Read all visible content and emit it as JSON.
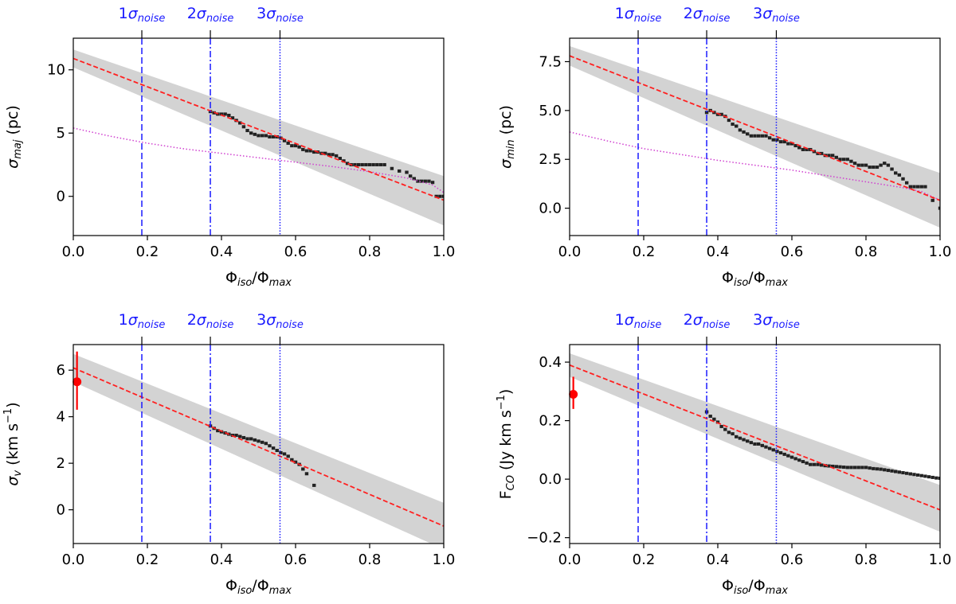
{
  "figure": {
    "noise_labels": [
      {
        "num": "1",
        "sym": "σ",
        "sub": "noise",
        "x": 0.185,
        "style": "dashed"
      },
      {
        "num": "2",
        "sym": "σ",
        "sub": "noise",
        "x": 0.37,
        "style": "dashdot"
      },
      {
        "num": "3",
        "sym": "σ",
        "sub": "noise",
        "x": 0.558,
        "style": "dotted"
      }
    ],
    "xlabel": {
      "phi1": "Φ",
      "sub1": "iso",
      "slash": "/",
      "phi2": "Φ",
      "sub2": "max"
    },
    "colors": {
      "fit": "#ff2020",
      "band": "#d3d3d3",
      "data": "#222222",
      "noise": "#1a1aff",
      "model": "#d040d0",
      "marker": "#ff0000"
    }
  },
  "chart_data": [
    {
      "id": "sigma_maj",
      "type": "scatter",
      "ylabel": {
        "main": "σ",
        "sub": "maj",
        "rest": " (pc)"
      },
      "xlim": [
        0,
        1
      ],
      "ylim": [
        -3.1,
        12.5
      ],
      "xticks": [
        "0.0",
        "0.2",
        "0.4",
        "0.6",
        "0.8",
        "1.0"
      ],
      "yticks": [
        {
          "v": 0,
          "label": "0"
        },
        {
          "v": 5,
          "label": "5"
        },
        {
          "v": 10,
          "label": "10"
        }
      ],
      "fit": {
        "x": [
          0,
          1
        ],
        "y": [
          10.9,
          -0.3
        ]
      },
      "band_upper": {
        "x": [
          0,
          1
        ],
        "y": [
          11.6,
          1.6
        ]
      },
      "band_lower": {
        "x": [
          0,
          1
        ],
        "y": [
          10.2,
          -2.3
        ]
      },
      "model_curve": {
        "x": [
          0,
          0.1,
          0.2,
          0.3,
          0.4,
          0.5,
          0.6,
          0.7,
          0.8,
          0.9,
          0.97,
          1.0
        ],
        "y": [
          5.4,
          4.75,
          4.2,
          3.75,
          3.4,
          3.05,
          2.7,
          2.35,
          1.95,
          1.45,
          0.9,
          0.3
        ]
      },
      "points_x": [
        0.37,
        0.38,
        0.39,
        0.4,
        0.41,
        0.42,
        0.43,
        0.44,
        0.45,
        0.46,
        0.47,
        0.48,
        0.49,
        0.5,
        0.51,
        0.52,
        0.53,
        0.54,
        0.55,
        0.56,
        0.57,
        0.58,
        0.59,
        0.6,
        0.61,
        0.62,
        0.63,
        0.64,
        0.65,
        0.66,
        0.67,
        0.68,
        0.69,
        0.7,
        0.71,
        0.72,
        0.73,
        0.74,
        0.75,
        0.76,
        0.77,
        0.78,
        0.79,
        0.8,
        0.81,
        0.82,
        0.83,
        0.84,
        0.86,
        0.88,
        0.9,
        0.91,
        0.92,
        0.93,
        0.94,
        0.95,
        0.96,
        0.97,
        0.98,
        0.99,
        1.0
      ],
      "points_y": [
        6.7,
        6.6,
        6.5,
        6.5,
        6.5,
        6.4,
        6.2,
        6.0,
        5.8,
        5.5,
        5.2,
        5.0,
        4.9,
        4.8,
        4.8,
        4.8,
        4.7,
        4.7,
        4.7,
        4.6,
        4.4,
        4.2,
        4.0,
        4.0,
        3.9,
        3.7,
        3.6,
        3.6,
        3.5,
        3.5,
        3.4,
        3.4,
        3.3,
        3.3,
        3.2,
        3.0,
        2.8,
        2.6,
        2.5,
        2.5,
        2.5,
        2.5,
        2.5,
        2.5,
        2.5,
        2.5,
        2.5,
        2.5,
        2.2,
        2.0,
        1.9,
        1.6,
        1.4,
        1.2,
        1.2,
        1.2,
        1.2,
        1.1,
        0.0,
        0.0,
        0.0
      ],
      "marker": null
    },
    {
      "id": "sigma_min",
      "type": "scatter",
      "ylabel": {
        "main": "σ",
        "sub": "min",
        "rest": " (pc)"
      },
      "xlim": [
        0,
        1
      ],
      "ylim": [
        -1.4,
        8.7
      ],
      "xticks": [
        "0.0",
        "0.2",
        "0.4",
        "0.6",
        "0.8",
        "1.0"
      ],
      "yticks": [
        {
          "v": 0,
          "label": "0.0"
        },
        {
          "v": 2.5,
          "label": "2.5"
        },
        {
          "v": 5,
          "label": "5.0"
        },
        {
          "v": 7.5,
          "label": "7.5"
        }
      ],
      "fit": {
        "x": [
          0,
          1
        ],
        "y": [
          7.8,
          0.4
        ]
      },
      "band_upper": {
        "x": [
          0,
          1
        ],
        "y": [
          8.3,
          1.8
        ]
      },
      "band_lower": {
        "x": [
          0,
          1
        ],
        "y": [
          7.3,
          -1.0
        ]
      },
      "model_curve": {
        "x": [
          0,
          0.1,
          0.2,
          0.3,
          0.4,
          0.5,
          0.6,
          0.7,
          0.8,
          0.9,
          0.95,
          1.0
        ],
        "y": [
          3.9,
          3.45,
          3.05,
          2.75,
          2.45,
          2.2,
          1.95,
          1.65,
          1.35,
          1.05,
          0.85,
          0.4
        ]
      },
      "points_x": [
        0.37,
        0.38,
        0.39,
        0.4,
        0.41,
        0.42,
        0.43,
        0.44,
        0.45,
        0.46,
        0.47,
        0.48,
        0.49,
        0.5,
        0.51,
        0.52,
        0.53,
        0.54,
        0.55,
        0.56,
        0.57,
        0.58,
        0.59,
        0.6,
        0.61,
        0.62,
        0.63,
        0.64,
        0.65,
        0.66,
        0.67,
        0.68,
        0.69,
        0.7,
        0.71,
        0.72,
        0.73,
        0.74,
        0.75,
        0.76,
        0.77,
        0.78,
        0.79,
        0.8,
        0.81,
        0.82,
        0.83,
        0.84,
        0.85,
        0.86,
        0.87,
        0.88,
        0.89,
        0.9,
        0.91,
        0.92,
        0.93,
        0.94,
        0.95,
        0.96,
        0.98,
        1.0
      ],
      "points_y": [
        4.9,
        5.0,
        4.9,
        4.8,
        4.8,
        4.7,
        4.5,
        4.3,
        4.2,
        4.0,
        3.9,
        3.8,
        3.7,
        3.7,
        3.7,
        3.7,
        3.7,
        3.6,
        3.5,
        3.5,
        3.4,
        3.4,
        3.3,
        3.3,
        3.2,
        3.1,
        3.0,
        3.0,
        3.0,
        2.9,
        2.8,
        2.8,
        2.7,
        2.7,
        2.7,
        2.6,
        2.5,
        2.5,
        2.5,
        2.4,
        2.3,
        2.2,
        2.2,
        2.2,
        2.1,
        2.1,
        2.1,
        2.2,
        2.3,
        2.2,
        2.0,
        1.8,
        1.7,
        1.5,
        1.3,
        1.1,
        1.1,
        1.1,
        1.1,
        1.1,
        0.4,
        0.0
      ],
      "marker": null
    },
    {
      "id": "sigma_v",
      "type": "scatter",
      "ylabel": {
        "main": "σ",
        "sub": "v",
        "rest": " (km s",
        "sup": "−1",
        "end": ")"
      },
      "xlim": [
        0,
        1
      ],
      "ylim": [
        -1.45,
        7.1
      ],
      "xticks": [
        "0.0",
        "0.2",
        "0.4",
        "0.6",
        "0.8",
        "1.0"
      ],
      "yticks": [
        {
          "v": 0,
          "label": "0"
        },
        {
          "v": 2,
          "label": "2"
        },
        {
          "v": 4,
          "label": "4"
        },
        {
          "v": 6,
          "label": "6"
        }
      ],
      "fit": {
        "x": [
          0,
          1
        ],
        "y": [
          6.1,
          -0.7
        ]
      },
      "band_upper": {
        "x": [
          0,
          1
        ],
        "y": [
          6.7,
          0.3
        ]
      },
      "band_lower": {
        "x": [
          0,
          1
        ],
        "y": [
          5.5,
          -1.7
        ]
      },
      "model_curve": null,
      "points_x": [
        0.37,
        0.38,
        0.39,
        0.4,
        0.41,
        0.42,
        0.43,
        0.44,
        0.45,
        0.46,
        0.47,
        0.48,
        0.49,
        0.5,
        0.51,
        0.52,
        0.53,
        0.54,
        0.55,
        0.56,
        0.57,
        0.58,
        0.59,
        0.6,
        0.61,
        0.62,
        0.63,
        0.65
      ],
      "points_y": [
        3.6,
        3.5,
        3.4,
        3.35,
        3.3,
        3.25,
        3.2,
        3.2,
        3.15,
        3.1,
        3.05,
        3.05,
        3.0,
        2.95,
        2.9,
        2.85,
        2.75,
        2.65,
        2.55,
        2.45,
        2.4,
        2.3,
        2.15,
        2.05,
        1.95,
        1.75,
        1.55,
        1.05
      ],
      "marker": {
        "x": 0.01,
        "y": 5.5,
        "ylow": 4.3,
        "yhigh": 6.8
      }
    },
    {
      "id": "F_CO",
      "type": "scatter",
      "ylabel": {
        "main": "F",
        "sub": "CO",
        "rest": " (Jy km s",
        "sup": "−1",
        "end": ")"
      },
      "xlim": [
        0,
        1
      ],
      "ylim": [
        -0.22,
        0.46
      ],
      "xticks": [
        "0.0",
        "0.2",
        "0.4",
        "0.6",
        "0.8",
        "1.0"
      ],
      "yticks": [
        {
          "v": -0.2,
          "label": "−0.2"
        },
        {
          "v": 0,
          "label": "0.0"
        },
        {
          "v": 0.2,
          "label": "0.2"
        },
        {
          "v": 0.4,
          "label": "0.4"
        }
      ],
      "fit": {
        "x": [
          0,
          1
        ],
        "y": [
          0.39,
          -0.105
        ]
      },
      "band_upper": {
        "x": [
          0,
          1
        ],
        "y": [
          0.43,
          -0.02
        ]
      },
      "band_lower": {
        "x": [
          0,
          1
        ],
        "y": [
          0.35,
          -0.18
        ]
      },
      "model_curve": null,
      "points_x": [
        0.37,
        0.38,
        0.39,
        0.4,
        0.41,
        0.42,
        0.43,
        0.44,
        0.45,
        0.46,
        0.47,
        0.48,
        0.49,
        0.5,
        0.51,
        0.52,
        0.53,
        0.54,
        0.55,
        0.56,
        0.57,
        0.58,
        0.59,
        0.6,
        0.61,
        0.62,
        0.63,
        0.64,
        0.65,
        0.66,
        0.67,
        0.68,
        0.69,
        0.7,
        0.71,
        0.72,
        0.73,
        0.74,
        0.75,
        0.76,
        0.77,
        0.78,
        0.79,
        0.8,
        0.81,
        0.82,
        0.83,
        0.84,
        0.85,
        0.86,
        0.87,
        0.88,
        0.89,
        0.9,
        0.91,
        0.92,
        0.93,
        0.94,
        0.95,
        0.96,
        0.97,
        0.98,
        0.99,
        1.0
      ],
      "points_y": [
        0.23,
        0.215,
        0.205,
        0.195,
        0.18,
        0.17,
        0.16,
        0.155,
        0.145,
        0.14,
        0.135,
        0.13,
        0.125,
        0.12,
        0.12,
        0.115,
        0.11,
        0.105,
        0.1,
        0.095,
        0.09,
        0.085,
        0.08,
        0.075,
        0.07,
        0.065,
        0.06,
        0.055,
        0.05,
        0.05,
        0.05,
        0.048,
        0.046,
        0.045,
        0.044,
        0.043,
        0.042,
        0.041,
        0.04,
        0.04,
        0.04,
        0.04,
        0.04,
        0.04,
        0.038,
        0.036,
        0.035,
        0.034,
        0.032,
        0.03,
        0.028,
        0.026,
        0.024,
        0.022,
        0.02,
        0.018,
        0.016,
        0.014,
        0.012,
        0.01,
        0.008,
        0.006,
        0.004,
        0.003
      ],
      "marker": {
        "x": 0.01,
        "y": 0.29,
        "ylow": 0.24,
        "yhigh": 0.35
      }
    }
  ]
}
